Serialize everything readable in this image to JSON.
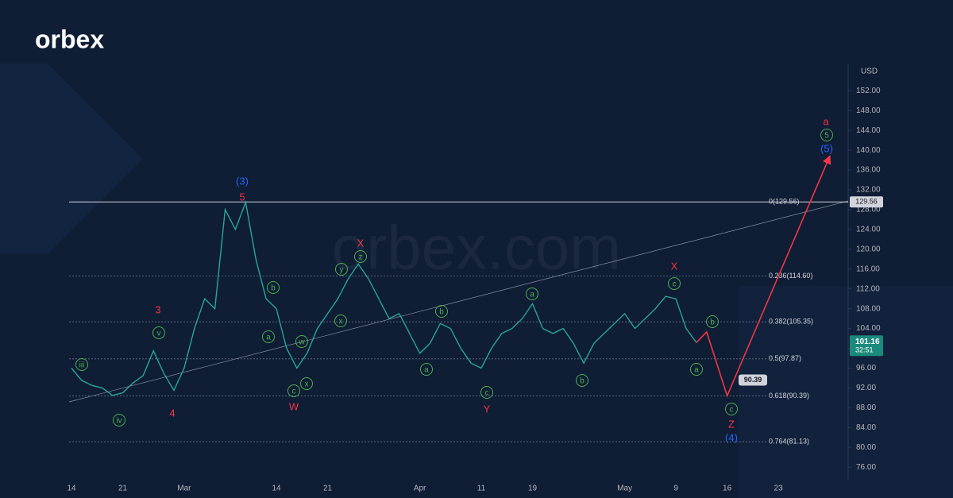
{
  "chart_data": {
    "type": "line",
    "logo": "orbex",
    "watermark": "orbex.com",
    "currency": "USD",
    "countdown": "32:51",
    "categories": [
      "14",
      null,
      null,
      null,
      null,
      "21",
      null,
      null,
      null,
      null,
      null,
      "Mar",
      null,
      null,
      null,
      null,
      null,
      null,
      null,
      null,
      "14",
      null,
      null,
      null,
      null,
      "21",
      null,
      null,
      null,
      null,
      null,
      null,
      null,
      null,
      "Apr",
      null,
      null,
      null,
      null,
      null,
      "11",
      null,
      null,
      null,
      null,
      "19",
      null,
      null,
      null,
      null,
      null,
      null,
      null,
      null,
      "May",
      null,
      null,
      null,
      null,
      "9",
      null,
      null,
      null,
      null,
      "16",
      null,
      null,
      null,
      null,
      "23",
      null,
      null,
      null,
      null,
      null,
      null
    ],
    "series": [
      {
        "color": "#26a69a",
        "values": [
          96,
          93.5,
          92.5,
          92,
          90.5,
          91,
          93,
          94.5,
          99.5,
          95,
          91.5,
          96,
          104,
          110,
          108,
          128,
          124,
          129.5,
          118,
          110,
          108,
          100,
          96,
          99,
          104,
          107,
          110,
          114,
          117,
          114,
          110,
          106,
          107,
          103,
          99,
          101,
          105,
          104,
          100,
          97,
          96,
          100,
          103,
          104,
          106,
          109,
          104,
          103,
          104,
          101,
          97,
          101,
          103,
          105,
          107,
          104,
          106,
          108,
          110.5,
          110,
          104,
          101.16,
          null,
          null,
          null,
          null,
          null,
          null,
          null,
          null,
          null,
          null,
          null,
          null,
          null,
          null
        ]
      }
    ],
    "projection": {
      "color": "#f23645",
      "x": [
        61,
        62,
        64,
        74
      ],
      "values": [
        101.16,
        103.3,
        90.39,
        138.7
      ]
    },
    "ylim": [
      73.3,
      157.5
    ],
    "yticks": [
      {
        "value": 76,
        "label": "76.00"
      },
      {
        "value": 80,
        "label": "80.00"
      },
      {
        "value": 84,
        "label": "84.00"
      },
      {
        "value": 88,
        "label": "88.00"
      },
      {
        "value": 92,
        "label": "92.00"
      },
      {
        "value": 96,
        "label": "96.00"
      },
      {
        "value": 100,
        "label": "100.00"
      },
      {
        "value": 104,
        "label": "104.00"
      },
      {
        "value": 108,
        "label": "108.00"
      },
      {
        "value": 112,
        "label": "112.00"
      },
      {
        "value": 116,
        "label": "116.00"
      },
      {
        "value": 120,
        "label": "120.00"
      },
      {
        "value": 124,
        "label": "124.00"
      },
      {
        "value": 128,
        "label": "128.00"
      },
      {
        "value": 132,
        "label": "132.00"
      },
      {
        "value": 136,
        "label": "136.00"
      },
      {
        "value": 140,
        "label": "140.00"
      },
      {
        "value": 144,
        "label": "144.00"
      },
      {
        "value": 148,
        "label": "148.00"
      },
      {
        "value": 152,
        "label": "152.00"
      }
    ],
    "fib_levels": [
      {
        "label": "0(129.56)",
        "value": 129.56
      },
      {
        "label": "0.236(114.60)",
        "value": 114.6
      },
      {
        "label": "0.382(105.35)",
        "value": 105.35
      },
      {
        "label": "0.5(97.87)",
        "value": 97.87
      },
      {
        "label": "0.618(90.39)",
        "value": 90.39
      },
      {
        "label": "0.764(81.13)",
        "value": 81.13
      }
    ],
    "annotations": [
      {
        "text": "(3)",
        "color": "#2962ff"
      },
      {
        "text": "5",
        "color": "#f23645"
      },
      {
        "text": "3",
        "color": "#f23645"
      },
      {
        "text": "4",
        "color": "#f23645"
      },
      {
        "text": "v",
        "color": "#4caf50"
      },
      {
        "text": "iii",
        "color": "#4caf50"
      },
      {
        "text": "iv",
        "color": "#4caf50"
      },
      {
        "text": "b",
        "color": "#4caf50"
      },
      {
        "text": "a",
        "color": "#4caf50"
      },
      {
        "text": "c",
        "color": "#4caf50"
      },
      {
        "text": "W",
        "color": "#f23645"
      },
      {
        "text": "w",
        "color": "#4caf50"
      },
      {
        "text": "x",
        "color": "#4caf50"
      },
      {
        "text": "y",
        "color": "#4caf50"
      },
      {
        "text": "x",
        "color": "#4caf50"
      },
      {
        "text": "z",
        "color": "#4caf50"
      },
      {
        "text": "X",
        "color": "#f23645"
      },
      {
        "text": "b",
        "color": "#4caf50"
      },
      {
        "text": "a",
        "color": "#4caf50"
      },
      {
        "text": "c",
        "color": "#4caf50"
      },
      {
        "text": "Y",
        "color": "#f23645"
      },
      {
        "text": "a",
        "color": "#4caf50"
      },
      {
        "text": "b",
        "color": "#4caf50"
      },
      {
        "text": "X",
        "color": "#f23645"
      },
      {
        "text": "c",
        "color": "#4caf50"
      },
      {
        "text": "b",
        "color": "#4caf50"
      },
      {
        "text": "a",
        "color": "#4caf50"
      },
      {
        "text": "c",
        "color": "#4caf50"
      },
      {
        "text": "Z",
        "color": "#f23645"
      },
      {
        "text": "(4)",
        "color": "#2962ff"
      },
      {
        "text": "a",
        "color": "#f23645"
      },
      {
        "text": "5",
        "color": "#4caf50"
      },
      {
        "text": "(5)",
        "color": "#2962ff"
      }
    ]
  }
}
